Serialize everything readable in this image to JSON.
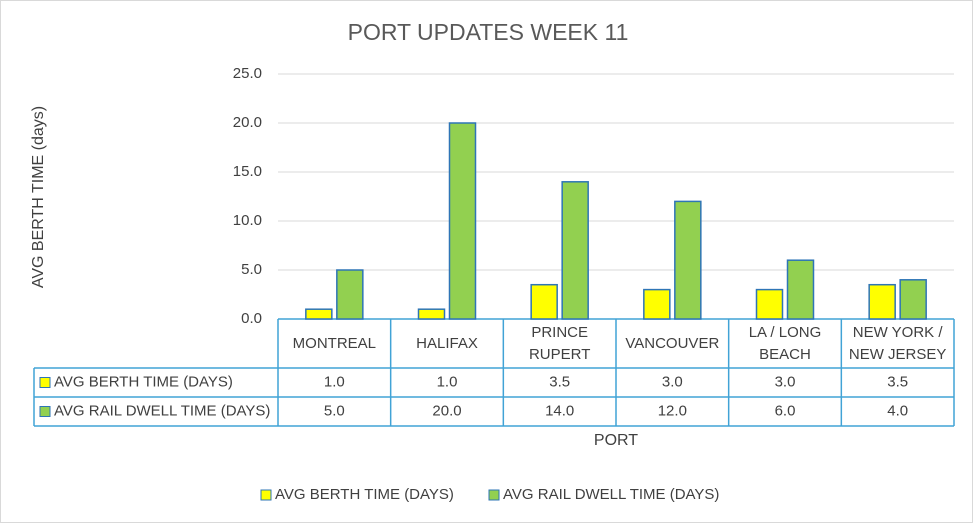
{
  "chart_data": {
    "type": "bar",
    "title": "PORT UPDATES WEEK 11",
    "y_label": "AVG BERTH TIME (days)",
    "x_label": "PORT",
    "categories": [
      "MONTREAL",
      "HALIFAX",
      "PRINCE RUPERT",
      "VANCOUVER",
      "LA / LONG BEACH",
      "NEW YORK / NEW JERSEY"
    ],
    "series": [
      {
        "name": "AVG BERTH TIME (DAYS)",
        "color": "#ffff00",
        "values": [
          1,
          1,
          3.5,
          3,
          3,
          3.5
        ],
        "value_labels": [
          "1.0",
          "1.0",
          "3.5",
          "3.0",
          "3.0",
          "3.5"
        ]
      },
      {
        "name": "AVG RAIL DWELL TIME (DAYS)",
        "color": "#92d050",
        "values": [
          5,
          20,
          14,
          12,
          6,
          4
        ],
        "value_labels": [
          "5.0",
          "20.0",
          "14.0",
          "12.0",
          "6.0",
          "4.0"
        ]
      }
    ],
    "ylim": [
      0,
      25
    ],
    "yticks": [
      {
        "value": 0,
        "label": "0.0"
      },
      {
        "value": 5,
        "label": "5.0"
      },
      {
        "value": 10,
        "label": "10.0"
      },
      {
        "value": 15,
        "label": "15.0"
      },
      {
        "value": 20,
        "label": "20.0"
      },
      {
        "value": 25,
        "label": "25.0"
      }
    ],
    "grid": true,
    "legend": "bottom",
    "data_table": true
  }
}
